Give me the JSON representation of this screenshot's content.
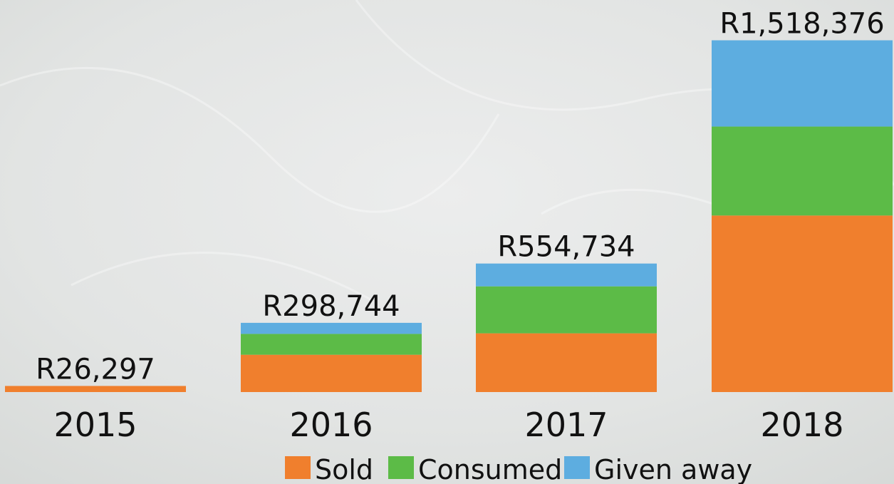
{
  "chart_data": {
    "type": "stacked_bar",
    "categories": [
      "2015",
      "2016",
      "2017",
      "2018"
    ],
    "series": [
      {
        "name": "Sold",
        "color": "#f07f2d",
        "values": [
          26297,
          161000,
          253500,
          762000
        ]
      },
      {
        "name": "Consumed",
        "color": "#5cbb47",
        "values": [
          0,
          90000,
          202800,
          384000
        ]
      },
      {
        "name": "Given away",
        "color": "#5dade0",
        "values": [
          0,
          47744,
          98434,
          372376
        ]
      }
    ],
    "totals": [
      26297,
      298744,
      554734,
      1518376
    ],
    "total_labels": [
      "R26,297",
      "R298,744",
      "R554,734",
      "R1,518,376"
    ],
    "ylim": [
      0,
      1520000
    ]
  }
}
